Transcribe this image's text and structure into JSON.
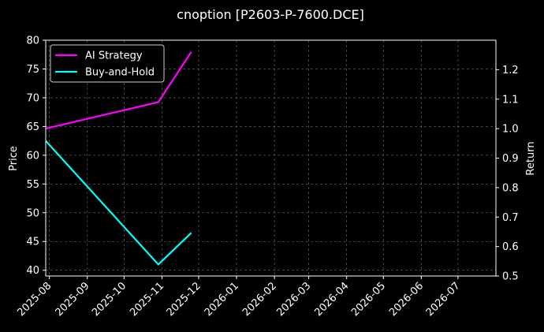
{
  "chart_data": {
    "type": "line",
    "title": "cnoption [P2603-P-7600.DCE]",
    "ylabel": "Price",
    "y2label": "Return",
    "ylim": [
      39,
      80
    ],
    "y2lim": [
      0.5,
      1.3
    ],
    "xlim": [
      "2025-07-29",
      "2026-08-01"
    ],
    "grid": true,
    "legend_position": "top-left",
    "xticks": [
      "2025-08",
      "2025-09",
      "2025-10",
      "2025-11",
      "2025-12",
      "2026-01",
      "2026-02",
      "2026-03",
      "2026-04",
      "2026-05",
      "2026-06",
      "2026-07"
    ],
    "yticks": [
      40,
      45,
      50,
      55,
      60,
      65,
      70,
      75,
      80
    ],
    "y2ticks": [
      "0.5",
      "0.6",
      "0.7",
      "0.8",
      "0.9",
      "1.0",
      "1.1",
      "1.2"
    ],
    "series": [
      {
        "name": "AI Strategy",
        "axis": "right",
        "color": "#ff00ff",
        "points": [
          {
            "x": "2025-07-29",
            "y": 1.0
          },
          {
            "x": "2025-10-29",
            "y": 1.09
          },
          {
            "x": "2025-11-25",
            "y": 1.26
          }
        ]
      },
      {
        "name": "Buy-and-Hold",
        "axis": "left",
        "color": "#00ffff",
        "points": [
          {
            "x": "2025-07-29",
            "y": 62.5
          },
          {
            "x": "2025-10-29",
            "y": 41.0
          },
          {
            "x": "2025-11-25",
            "y": 46.5
          }
        ]
      }
    ]
  }
}
